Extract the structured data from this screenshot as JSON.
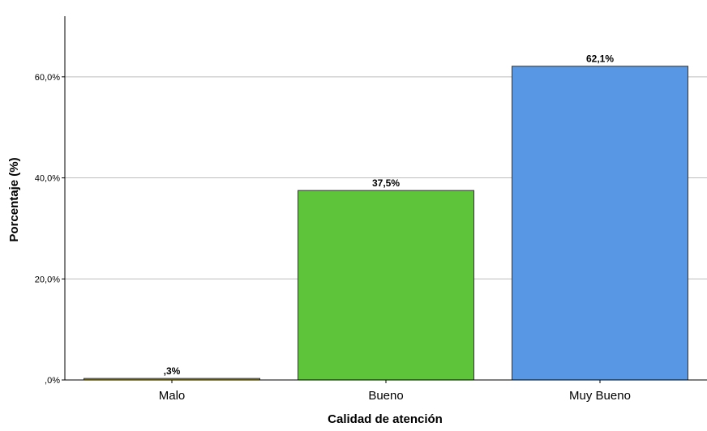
{
  "chart_data": {
    "type": "bar",
    "categories": [
      "Malo",
      "Bueno",
      "Muy Bueno"
    ],
    "values": [
      0.3,
      37.5,
      62.1
    ],
    "data_labels": [
      ",3%",
      "37,5%",
      "62,1%"
    ],
    "colors": [
      "#b5a52a",
      "#5ec43a",
      "#5797e3"
    ],
    "xlabel": "Calidad de atención",
    "ylabel": "Porcentaje (%)",
    "ylim": [
      0,
      72
    ],
    "yticks": [
      {
        "value": 0,
        "label": ",0%"
      },
      {
        "value": 20,
        "label": "20,0%"
      },
      {
        "value": 40,
        "label": "40,0%"
      },
      {
        "value": 60,
        "label": "60,0%"
      }
    ],
    "grid": true,
    "legend": "none"
  }
}
